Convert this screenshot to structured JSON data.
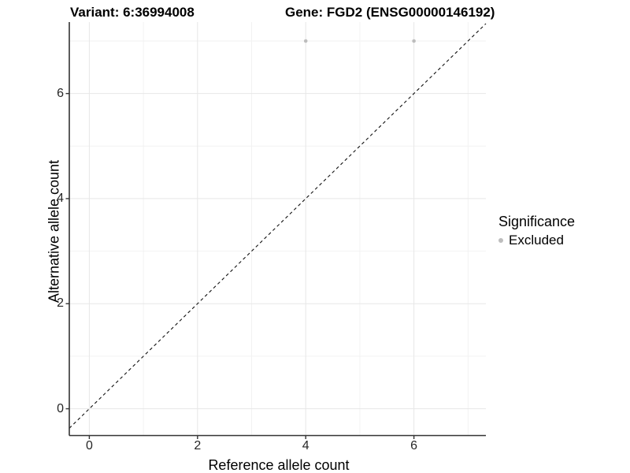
{
  "chart_data": {
    "type": "scatter",
    "title_left": "Variant: 6:36994008",
    "title_right": "Gene: FGD2 (ENSG00000146192)",
    "xlabel": "Reference allele count",
    "ylabel": "Alternative allele count",
    "series": [
      {
        "name": "Excluded",
        "color": "#bdbdbd",
        "points": [
          [
            4,
            7
          ],
          [
            6,
            7
          ]
        ]
      }
    ],
    "identity_line": {
      "slope": 1,
      "intercept": 0,
      "style": "dashed",
      "color": "#111111"
    },
    "x_ticks": [
      0,
      2,
      4,
      6
    ],
    "y_ticks": [
      0,
      2,
      4,
      6
    ],
    "x_minor": [
      1,
      3,
      5,
      7
    ],
    "y_minor": [
      1,
      3,
      5,
      7
    ],
    "xlim": [
      -0.37,
      7.33
    ],
    "ylim": [
      -0.51,
      7.36
    ],
    "grid": true,
    "legend": {
      "title": "Significance",
      "position": "right",
      "entries": [
        {
          "label": "Excluded",
          "color": "#bdbdbd"
        }
      ]
    },
    "colors": {
      "background": "#ffffff",
      "point": "#bdbdbd",
      "grid_major": "#e7e7e7",
      "grid_minor": "#f2f2f2",
      "axis_line": "#333333",
      "tick_text": "#262626"
    }
  }
}
